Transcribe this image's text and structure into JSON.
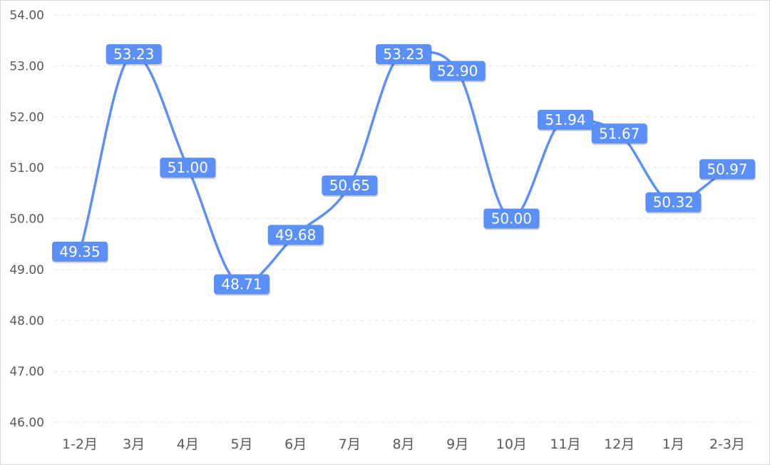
{
  "chart_data": {
    "type": "line",
    "title": "",
    "xlabel": "",
    "ylabel": "",
    "categories": [
      "1-2月",
      "3月",
      "4月",
      "5月",
      "6月",
      "7月",
      "8月",
      "9月",
      "10月",
      "11月",
      "12月",
      "1月",
      "2-3月"
    ],
    "series": [
      {
        "values": [
          49.35,
          53.23,
          51.0,
          48.71,
          49.68,
          50.65,
          53.23,
          52.9,
          50.0,
          51.94,
          51.67,
          50.32,
          50.97
        ]
      }
    ],
    "data_labels": [
      "49.35",
      "53.23",
      "51.00",
      "48.71",
      "49.68",
      "50.65",
      "53.23",
      "52.90",
      "50.00",
      "51.94",
      "51.67",
      "50.32",
      "50.97"
    ],
    "ylim": [
      46,
      54
    ],
    "y_ticks": [
      "46.00",
      "47.00",
      "48.00",
      "49.00",
      "50.00",
      "51.00",
      "52.00",
      "53.00",
      "54.00"
    ],
    "grid": "horizontal-dashed",
    "smooth": true,
    "legend": "none",
    "colors": {
      "line": "#5b8ff9",
      "label_bg": "#5b8ff9",
      "label_text": "#ffffff",
      "grid": "#e6e6e6",
      "axis_text": "#595959"
    }
  }
}
